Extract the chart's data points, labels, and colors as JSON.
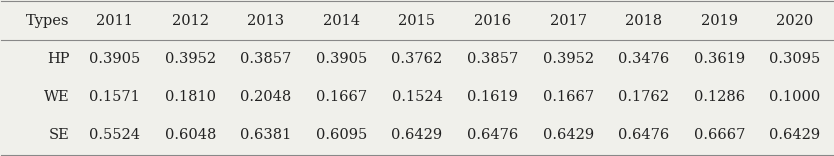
{
  "columns": [
    "Types",
    "2011",
    "2012",
    "2013",
    "2014",
    "2015",
    "2016",
    "2017",
    "2018",
    "2019",
    "2020"
  ],
  "rows": [
    [
      "HP",
      "0.3905",
      "0.3952",
      "0.3857",
      "0.3905",
      "0.3762",
      "0.3857",
      "0.3952",
      "0.3476",
      "0.3619",
      "0.3095"
    ],
    [
      "WE",
      "0.1571",
      "0.1810",
      "0.2048",
      "0.1667",
      "0.1524",
      "0.1619",
      "0.1667",
      "0.1762",
      "0.1286",
      "0.1000"
    ],
    [
      "SE",
      "0.5524",
      "0.6048",
      "0.6381",
      "0.6095",
      "0.6429",
      "0.6476",
      "0.6429",
      "0.6476",
      "0.6667",
      "0.6429"
    ]
  ],
  "background_color": "#f0f0eb",
  "line_color": "#888888",
  "text_color": "#222222",
  "font_size": 10.5,
  "fig_width": 8.34,
  "fig_height": 1.56,
  "dpi": 100
}
